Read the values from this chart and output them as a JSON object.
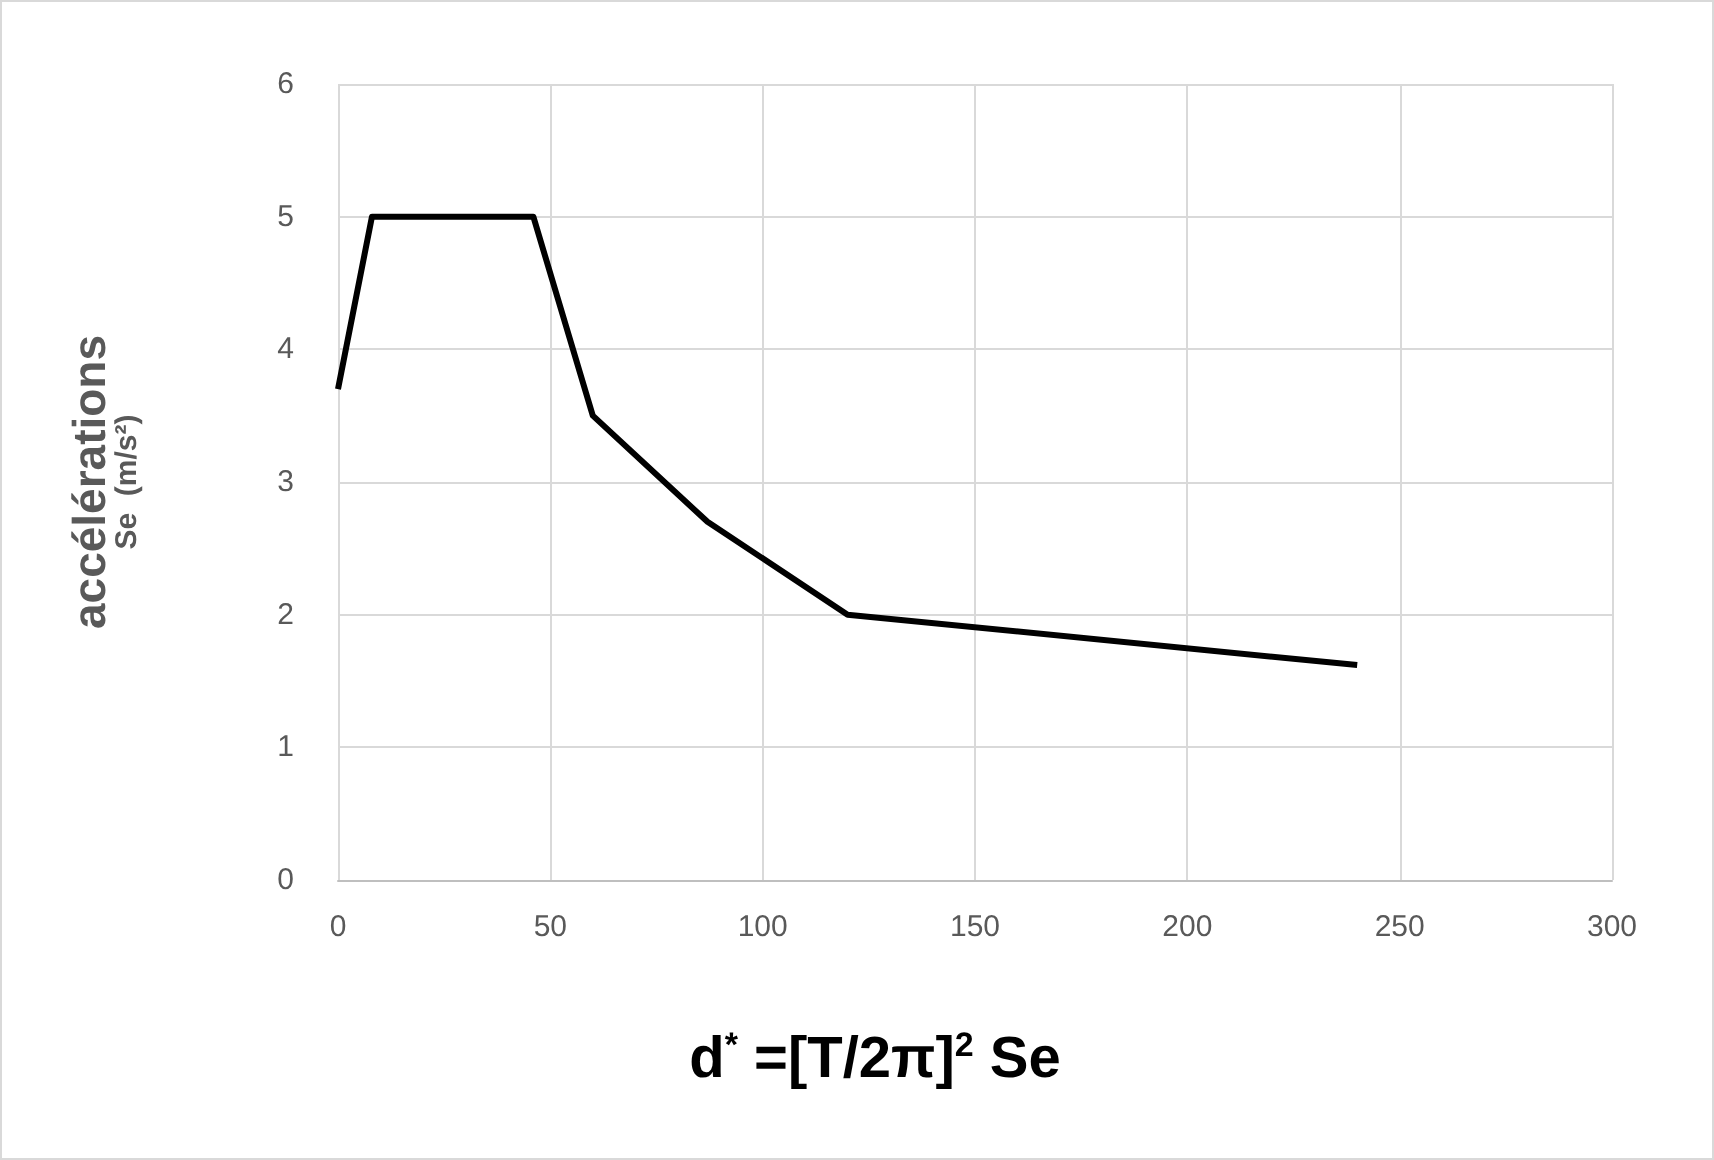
{
  "chart_data": {
    "type": "line",
    "xlabel": "d$^{*}$ =[T/2π]$^{2}$ Se",
    "ylabel": "accélérations\nSe  (m/s²)",
    "x": [
      0,
      8,
      46,
      60,
      87,
      120,
      240
    ],
    "series": [
      {
        "color": "#000000",
        "values": [
          3.7,
          5,
          5,
          3.5,
          2.7,
          2.0,
          1.62
        ]
      }
    ],
    "xlim": [
      0,
      300
    ],
    "xticks": [
      0,
      50,
      100,
      150,
      200,
      250,
      300
    ],
    "ylim": [
      0,
      6
    ],
    "yticks": [
      0,
      1,
      2,
      3,
      4,
      5,
      6
    ],
    "grid": true,
    "marker": "none",
    "line_style": "solid"
  }
}
